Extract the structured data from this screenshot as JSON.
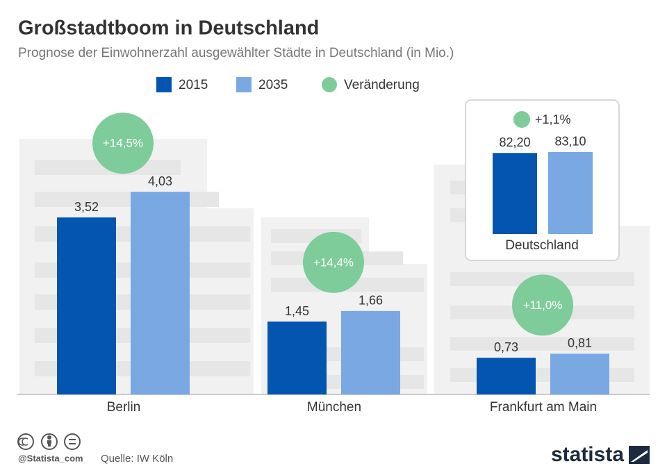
{
  "chart_data": {
    "type": "bar",
    "title": "Großstadtboom in Deutschland",
    "subtitle": "Prognose der Einwohnerzahl ausgewählter Städte in Deutschland (in Mio.)",
    "categories": [
      "Berlin",
      "München",
      "Frankfurt am Main"
    ],
    "series": [
      {
        "name": "2015",
        "color": "#0455b0",
        "values": [
          3.52,
          1.45,
          0.73
        ],
        "value_labels": [
          "3,52",
          "1,45",
          "0,73"
        ]
      },
      {
        "name": "2035",
        "color": "#7aa8e2",
        "values": [
          4.03,
          1.66,
          0.81
        ],
        "value_labels": [
          "4,03",
          "1,66",
          "0,81"
        ]
      },
      {
        "name": "Veränderung",
        "color": "#7dcc9a",
        "values": [
          14.5,
          14.4,
          11.0
        ],
        "value_labels": [
          "+14,5%",
          "+14,4%",
          "+11,0%"
        ]
      }
    ],
    "inset": {
      "category": "Deutschland",
      "values": [
        82.2,
        83.1
      ],
      "value_labels": [
        "82,20",
        "83,10"
      ],
      "change": 1.1,
      "change_label": "+1,1%"
    },
    "credit": "@Statista_com",
    "source": "Quelle: IW Köln",
    "brand": "statista"
  }
}
